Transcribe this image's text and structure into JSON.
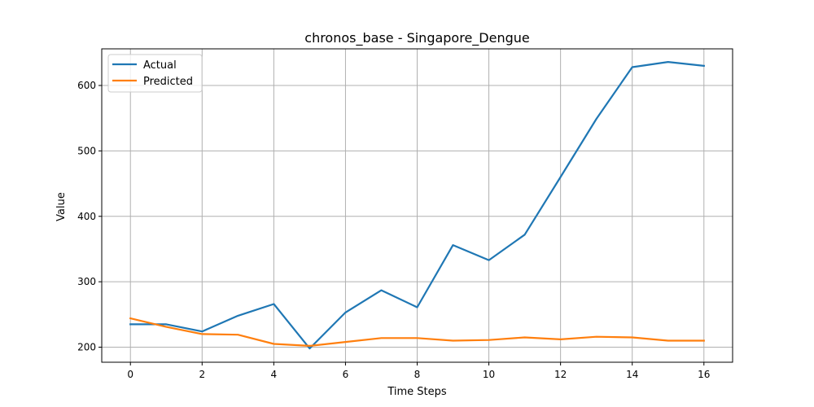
{
  "chart_data": {
    "type": "line",
    "title": "chronos_base - Singapore_Dengue",
    "xlabel": "Time Steps",
    "ylabel": "Value",
    "x": [
      0,
      1,
      2,
      3,
      4,
      5,
      6,
      7,
      8,
      9,
      10,
      11,
      12,
      13,
      14,
      15,
      16
    ],
    "xlim": [
      -0.8,
      16.8
    ],
    "ylim": [
      177,
      656
    ],
    "xticks": [
      0,
      2,
      4,
      6,
      8,
      10,
      12,
      14,
      16
    ],
    "yticks": [
      200,
      300,
      400,
      500,
      600
    ],
    "grid": true,
    "legend_position": "top-left",
    "series": [
      {
        "name": "Actual",
        "color": "#1f77b4",
        "values": [
          235,
          235,
          224,
          248,
          266,
          198,
          253,
          287,
          261,
          356,
          333,
          372,
          460,
          549,
          628,
          636,
          630
        ]
      },
      {
        "name": "Predicted",
        "color": "#ff7f0e",
        "values": [
          244,
          231,
          220,
          219,
          205,
          202,
          208,
          214,
          214,
          210,
          211,
          215,
          212,
          216,
          215,
          210,
          210
        ]
      }
    ]
  }
}
